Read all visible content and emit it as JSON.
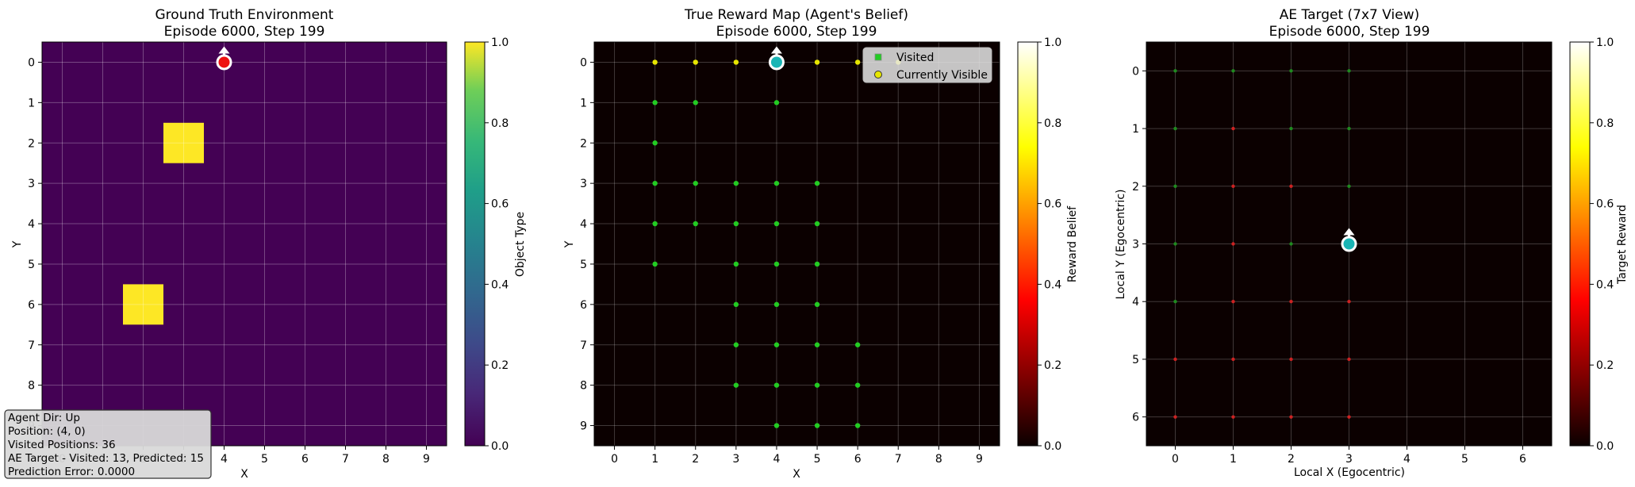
{
  "chart_data": [
    {
      "type": "heatmap",
      "title": "Ground Truth Environment",
      "subtitle": "Episode 6000, Step 199",
      "xlabel": "X",
      "ylabel": "Y",
      "x_ticks": [
        0,
        1,
        2,
        3,
        4,
        5,
        6,
        7,
        8,
        9
      ],
      "y_ticks": [
        0,
        1,
        2,
        3,
        4,
        5,
        6,
        7,
        8,
        9
      ],
      "xlim": [
        -0.5,
        9.5
      ],
      "ylim": [
        -0.5,
        9.5
      ],
      "grid": true,
      "background_value": 0.0,
      "objects": [
        {
          "x": 3,
          "y": 2,
          "value": 1.0
        },
        {
          "x": 2,
          "y": 6,
          "value": 1.0
        }
      ],
      "agent": {
        "x": 4,
        "y": 0,
        "dir": "up"
      },
      "colorbar": {
        "label": "Object Type",
        "min": 0.0,
        "max": 1.0,
        "ticks": [
          "0.0",
          "0.2",
          "0.4",
          "0.6",
          "0.8",
          "1.0"
        ]
      },
      "info_box": [
        "Agent Dir: Up",
        "Position: (4, 0)",
        "Visited Positions: 36",
        "AE Target - Visited: 13, Predicted: 15",
        "Prediction Error: 0.0000"
      ]
    },
    {
      "type": "scatter",
      "title": "True Reward Map (Agent's Belief)",
      "subtitle": "Episode 6000, Step 199",
      "xlabel": "X",
      "ylabel": "Y",
      "x_ticks": [
        0,
        1,
        2,
        3,
        4,
        5,
        6,
        7,
        8,
        9
      ],
      "y_ticks": [
        0,
        1,
        2,
        3,
        4,
        5,
        6,
        7,
        8,
        9
      ],
      "xlim": [
        -0.5,
        9.5
      ],
      "ylim": [
        -0.5,
        9.5
      ],
      "grid": true,
      "legend_position": "top-right",
      "series": [
        {
          "name": "Visited",
          "color": "#22cc22",
          "points": [
            [
              1,
              1
            ],
            [
              2,
              1
            ],
            [
              4,
              1
            ],
            [
              1,
              2
            ],
            [
              1,
              3
            ],
            [
              2,
              3
            ],
            [
              3,
              3
            ],
            [
              4,
              3
            ],
            [
              5,
              3
            ],
            [
              1,
              4
            ],
            [
              2,
              4
            ],
            [
              3,
              4
            ],
            [
              4,
              4
            ],
            [
              5,
              4
            ],
            [
              1,
              5
            ],
            [
              3,
              5
            ],
            [
              4,
              5
            ],
            [
              5,
              5
            ],
            [
              3,
              6
            ],
            [
              4,
              6
            ],
            [
              5,
              6
            ],
            [
              3,
              7
            ],
            [
              4,
              7
            ],
            [
              5,
              7
            ],
            [
              6,
              7
            ],
            [
              3,
              8
            ],
            [
              4,
              8
            ],
            [
              5,
              8
            ],
            [
              6,
              8
            ],
            [
              4,
              9
            ],
            [
              5,
              9
            ],
            [
              6,
              9
            ]
          ]
        },
        {
          "name": "Currently Visible",
          "color": "#e6e600",
          "points": [
            [
              1,
              0
            ],
            [
              2,
              0
            ],
            [
              3,
              0
            ],
            [
              5,
              0
            ],
            [
              6,
              0
            ],
            [
              7,
              0
            ]
          ]
        }
      ],
      "agent": {
        "x": 4,
        "y": 0,
        "dir": "up"
      },
      "colorbar": {
        "label": "Reward Belief",
        "min": 0.0,
        "max": 1.0,
        "ticks": [
          "0.0",
          "0.2",
          "0.4",
          "0.6",
          "0.8",
          "1.0"
        ]
      }
    },
    {
      "type": "scatter",
      "title": "AE Target (7x7 View)",
      "subtitle": "Episode 6000, Step 199",
      "xlabel": "Local X (Egocentric)",
      "ylabel": "Local Y (Egocentric)",
      "x_ticks": [
        0,
        1,
        2,
        3,
        4,
        5,
        6
      ],
      "y_ticks": [
        0,
        1,
        2,
        3,
        4,
        5,
        6
      ],
      "xlim": [
        -0.5,
        6.5
      ],
      "ylim": [
        -0.5,
        6.5
      ],
      "grid": true,
      "series": [
        {
          "color": "#1f8a1f",
          "points": [
            [
              0,
              0
            ],
            [
              1,
              0
            ],
            [
              2,
              0
            ],
            [
              3,
              0
            ],
            [
              0,
              1
            ],
            [
              2,
              1
            ],
            [
              3,
              1
            ],
            [
              0,
              2
            ],
            [
              3,
              2
            ],
            [
              0,
              3
            ],
            [
              2,
              3
            ],
            [
              0,
              4
            ]
          ]
        },
        {
          "color": "#cc2222",
          "points": [
            [
              1,
              1
            ],
            [
              1,
              2
            ],
            [
              2,
              2
            ],
            [
              1,
              3
            ],
            [
              1,
              4
            ],
            [
              2,
              4
            ],
            [
              3,
              4
            ],
            [
              0,
              5
            ],
            [
              1,
              5
            ],
            [
              2,
              5
            ],
            [
              3,
              5
            ],
            [
              0,
              6
            ],
            [
              1,
              6
            ],
            [
              2,
              6
            ],
            [
              3,
              6
            ]
          ]
        }
      ],
      "agent": {
        "x": 3,
        "y": 3,
        "dir": "up"
      },
      "colorbar": {
        "label": "Target Reward",
        "min": 0.0,
        "max": 1.0,
        "ticks": [
          "0.0",
          "0.2",
          "0.4",
          "0.6",
          "0.8",
          "1.0"
        ]
      }
    }
  ]
}
